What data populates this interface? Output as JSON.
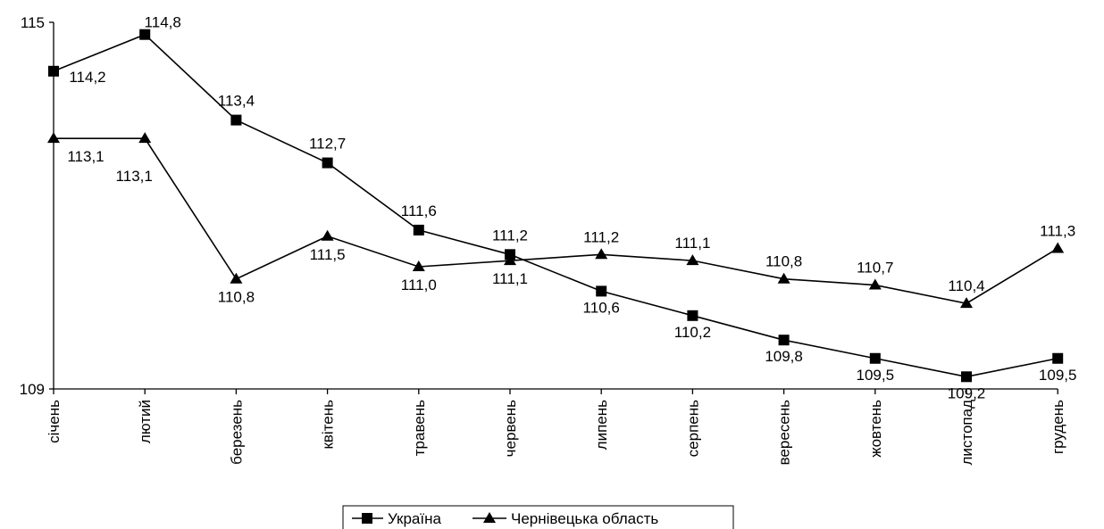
{
  "chart_data": {
    "type": "line",
    "categories": [
      "січень",
      "лютий",
      "березень",
      "квітень",
      "травень",
      "червень",
      "липень",
      "серпень",
      "вересень",
      "жовтень",
      "листопад",
      "грудень"
    ],
    "ylim": [
      109,
      115
    ],
    "yticks": [
      "109",
      "115"
    ],
    "series": [
      {
        "name": "Україна",
        "marker": "square",
        "values": [
          114.2,
          114.8,
          113.4,
          112.7,
          111.6,
          111.2,
          110.6,
          110.2,
          109.8,
          109.5,
          109.2,
          109.5
        ],
        "labels": [
          "114,2",
          "114,8",
          "113,4",
          "112,7",
          "111,6",
          "111,2",
          "110,6",
          "110,2",
          "109,8",
          "109,5",
          "109,2",
          "109,5"
        ]
      },
      {
        "name": "Чернівецька область",
        "marker": "triangle",
        "values": [
          113.1,
          113.1,
          110.8,
          111.5,
          111.0,
          111.1,
          111.2,
          111.1,
          110.8,
          110.7,
          110.4,
          111.3
        ],
        "labels": [
          "113,1",
          "113,1",
          "110,8",
          "111,5",
          "111,0",
          "111,1",
          "111,2",
          "111,1",
          "110,8",
          "110,7",
          "110,4",
          "111,3"
        ]
      }
    ],
    "legend_position": "bottom-center",
    "line_color": "#000000"
  }
}
